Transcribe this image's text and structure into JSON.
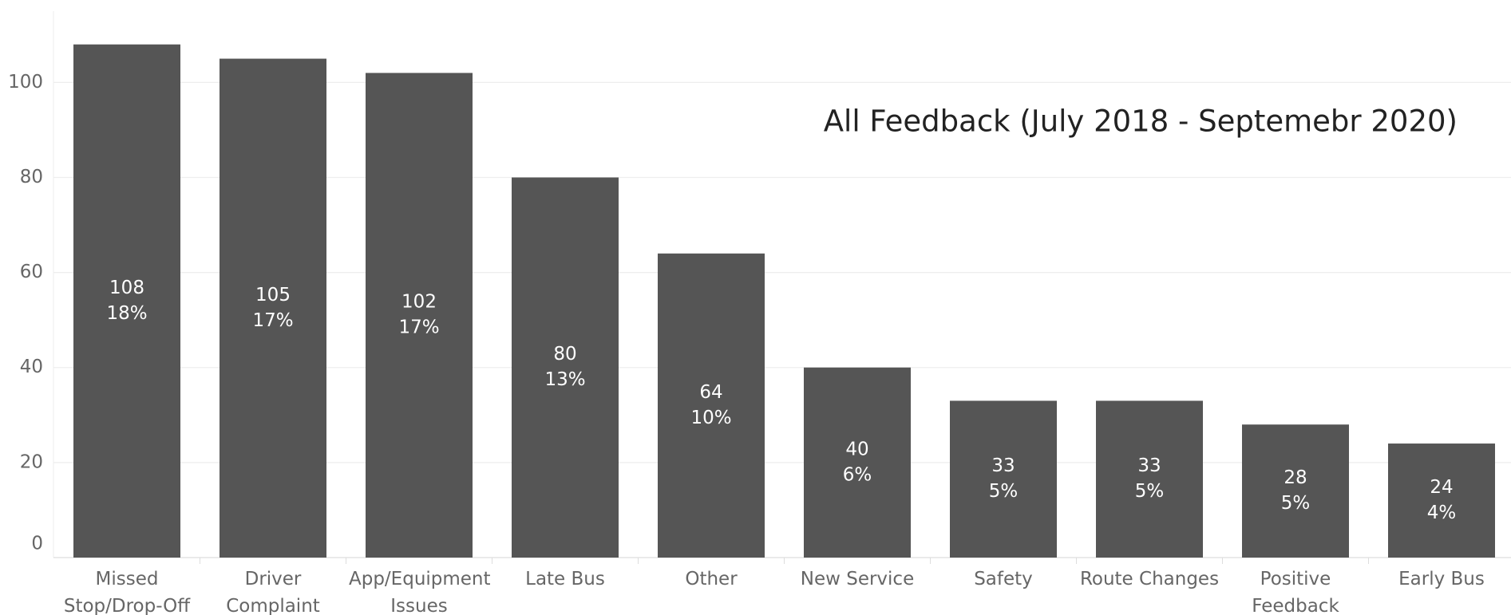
{
  "chart_data": {
    "type": "bar",
    "title": "All Feedback (July 2018 - Septemebr 2020)",
    "categories": [
      "Missed Stop/Drop-Off",
      "Driver Complaint",
      "App/Equipment Issues",
      "Late Bus",
      "Other",
      "New Service",
      "Safety",
      "Route Changes",
      "Positive Feedback",
      "Early Bus"
    ],
    "values": [
      108,
      105,
      102,
      80,
      64,
      40,
      33,
      33,
      28,
      24
    ],
    "percent_values": [
      18,
      17,
      17,
      13,
      10,
      6,
      5,
      5,
      5,
      4
    ],
    "percent_labels": [
      "18%",
      "17%",
      "17%",
      "13%",
      "10%",
      "6%",
      "5%",
      "5%",
      "5%",
      "4%"
    ],
    "color": "#555555",
    "ylim": [
      0,
      115
    ],
    "yticks": [
      0,
      20,
      40,
      60,
      80,
      100
    ],
    "grid": true
  }
}
